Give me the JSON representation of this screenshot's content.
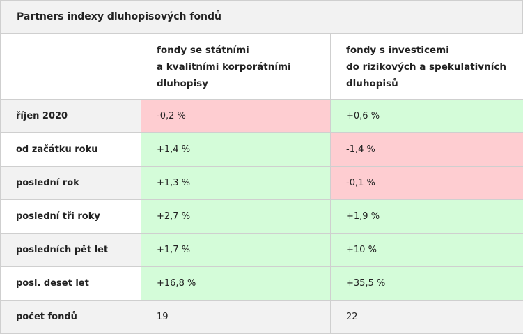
{
  "title": "Partners indexy dluhopisových fondů",
  "columns": [
    {
      "lines": [
        "fondy se státními",
        "a kvalitními korporátními",
        "dluhopisy"
      ]
    },
    {
      "lines": [
        "fondy s investicemi",
        "do rizikových a spekulativních",
        "dluhopisů"
      ]
    }
  ],
  "rows": [
    {
      "label": "říjen 2020",
      "values": [
        "-0,2 %",
        "+0,6 %"
      ],
      "states": [
        "negative",
        "positive"
      ]
    },
    {
      "label": "od začátku roku",
      "values": [
        "+1,4 %",
        "-1,4 %"
      ],
      "states": [
        "positive",
        "negative"
      ]
    },
    {
      "label": "poslední rok",
      "values": [
        "+1,3 %",
        "-0,1 %"
      ],
      "states": [
        "positive",
        "negative"
      ]
    },
    {
      "label": "poslední tři roky",
      "values": [
        "+2,7 %",
        "+1,9 %"
      ],
      "states": [
        "positive",
        "positive"
      ]
    },
    {
      "label": "posledních pět let",
      "values": [
        "+1,7 %",
        "+10 %"
      ],
      "states": [
        "positive",
        "positive"
      ]
    },
    {
      "label": "posl. deset let",
      "values": [
        "+16,8 %",
        "+35,5 %"
      ],
      "states": [
        "positive",
        "positive"
      ]
    },
    {
      "label": "počet fondů",
      "values": [
        "19",
        "22"
      ],
      "states": [
        "neutral",
        "neutral"
      ]
    }
  ],
  "colors": {
    "positive": "#d4fcd9",
    "negative": "#fecdd1",
    "label_alt": "#f2f2f2",
    "border": "#cfcfcf"
  }
}
